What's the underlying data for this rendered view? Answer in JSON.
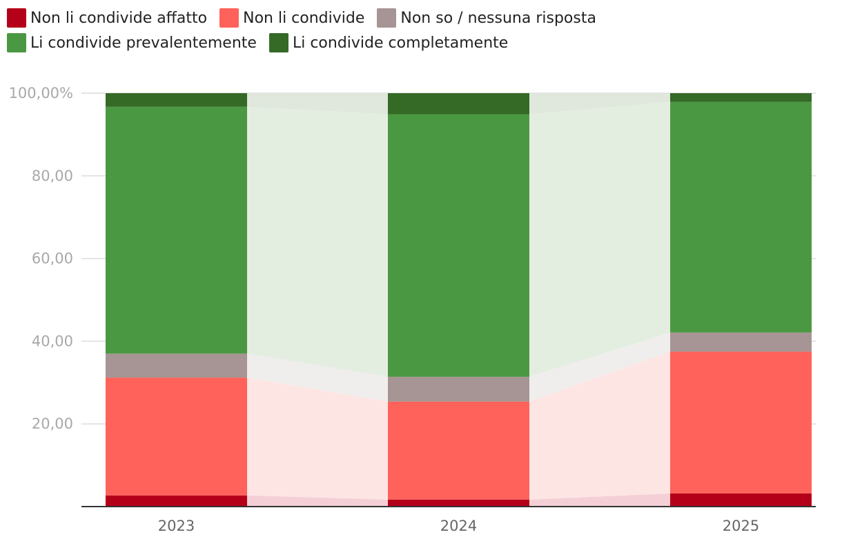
{
  "chart_data": {
    "type": "bar",
    "stacked": true,
    "normalized_percent": true,
    "categories": [
      "2023",
      "2024",
      "2025"
    ],
    "series": [
      {
        "name": "Non li condivide affatto",
        "color": "#b50019",
        "band_color": "#f4d0d6",
        "values": [
          2.7,
          1.7,
          3.2
        ]
      },
      {
        "name": "Non li condivide",
        "color": "#ff625a",
        "band_color": "#fde5e4",
        "values": [
          28.5,
          23.7,
          34.3
        ]
      },
      {
        "name": "Non so / nessuna risposta",
        "color": "#a69594",
        "band_color": "#f0eeed",
        "values": [
          5.8,
          6.0,
          4.6
        ]
      },
      {
        "name": "Li condivide prevalentemente",
        "color": "#4b9843",
        "band_color": "#e3eee1",
        "values": [
          59.7,
          63.5,
          55.8
        ]
      },
      {
        "name": "Li condivide completamente",
        "color": "#356a26",
        "band_color": "#e0e7dd",
        "values": [
          3.3,
          5.1,
          2.1
        ]
      }
    ],
    "ylim": [
      0,
      100
    ],
    "yticks": [
      {
        "value": 20,
        "label": "20,00"
      },
      {
        "value": 40,
        "label": "40,00"
      },
      {
        "value": 60,
        "label": "60,00"
      },
      {
        "value": 80,
        "label": "80,00"
      },
      {
        "value": 100,
        "label": "100,00%"
      }
    ],
    "grid": true,
    "legend_position": "top",
    "title": "",
    "xlabel": "",
    "ylabel": ""
  }
}
